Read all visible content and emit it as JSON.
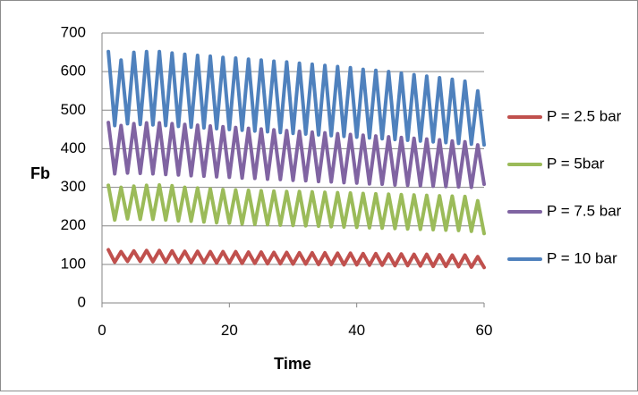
{
  "chart_data": {
    "type": "line",
    "title": "",
    "xlabel": "Time",
    "ylabel": "Fb",
    "xlim": [
      0,
      60
    ],
    "ylim": [
      0,
      700
    ],
    "x_ticks": [
      "0",
      "20",
      "40",
      "60"
    ],
    "y_ticks": [
      "0",
      "100",
      "200",
      "300",
      "400",
      "500",
      "600",
      "700"
    ],
    "grid": "horizontal",
    "legend_position": "right",
    "series": [
      {
        "name": "P = 2.5 bar",
        "color": "#c0504d",
        "x": [
          1,
          2,
          3,
          4,
          5,
          6,
          7,
          8,
          9,
          10,
          11,
          12,
          13,
          14,
          15,
          16,
          17,
          18,
          19,
          20,
          21,
          22,
          23,
          24,
          25,
          26,
          27,
          28,
          29,
          30,
          31,
          32,
          33,
          34,
          35,
          36,
          37,
          38,
          39,
          40,
          41,
          42,
          43,
          44,
          45,
          46,
          47,
          48,
          49,
          50,
          51,
          52,
          53,
          54,
          55,
          56,
          57,
          58,
          59,
          60
        ],
        "values": [
          138,
          106,
          133,
          108,
          135,
          108,
          136,
          107,
          136,
          106,
          135,
          106,
          134,
          105,
          134,
          105,
          133,
          104,
          133,
          104,
          133,
          103,
          132,
          103,
          132,
          102,
          131,
          102,
          131,
          101,
          130,
          101,
          130,
          100,
          130,
          100,
          129,
          99,
          129,
          99,
          128,
          98,
          128,
          98,
          127,
          97,
          127,
          97,
          126,
          96,
          126,
          95,
          125,
          95,
          124,
          94,
          124,
          93,
          120,
          92
        ]
      },
      {
        "name": "P = 5bar",
        "color": "#9bbb59",
        "x": [
          1,
          2,
          3,
          4,
          5,
          6,
          7,
          8,
          9,
          10,
          11,
          12,
          13,
          14,
          15,
          16,
          17,
          18,
          19,
          20,
          21,
          22,
          23,
          24,
          25,
          26,
          27,
          28,
          29,
          30,
          31,
          32,
          33,
          34,
          35,
          36,
          37,
          38,
          39,
          40,
          41,
          42,
          43,
          44,
          45,
          46,
          47,
          48,
          49,
          50,
          51,
          52,
          53,
          54,
          55,
          56,
          57,
          58,
          59,
          60
        ],
        "values": [
          305,
          215,
          300,
          218,
          303,
          217,
          305,
          217,
          306,
          215,
          304,
          213,
          300,
          212,
          298,
          210,
          296,
          208,
          294,
          207,
          293,
          205,
          292,
          204,
          291,
          203,
          290,
          202,
          289,
          201,
          289,
          200,
          288,
          199,
          287,
          198,
          286,
          197,
          285,
          196,
          284,
          195,
          283,
          194,
          282,
          193,
          281,
          192,
          280,
          191,
          279,
          190,
          278,
          189,
          277,
          188,
          276,
          186,
          265,
          180
        ]
      },
      {
        "name": "P = 7.5 bar",
        "color": "#8064a2",
        "x": [
          1,
          2,
          3,
          4,
          5,
          6,
          7,
          8,
          9,
          10,
          11,
          12,
          13,
          14,
          15,
          16,
          17,
          18,
          19,
          20,
          21,
          22,
          23,
          24,
          25,
          26,
          27,
          28,
          29,
          30,
          31,
          32,
          33,
          34,
          35,
          36,
          37,
          38,
          39,
          40,
          41,
          42,
          43,
          44,
          45,
          46,
          47,
          48,
          49,
          50,
          51,
          52,
          53,
          54,
          55,
          56,
          57,
          58,
          59,
          60
        ],
        "values": [
          468,
          335,
          460,
          337,
          465,
          336,
          467,
          335,
          467,
          333,
          465,
          332,
          463,
          330,
          461,
          329,
          459,
          327,
          457,
          326,
          455,
          324,
          453,
          323,
          451,
          321,
          449,
          320,
          447,
          318,
          445,
          317,
          443,
          315,
          441,
          314,
          439,
          312,
          437,
          311,
          435,
          309,
          433,
          308,
          431,
          306,
          429,
          305,
          427,
          304,
          425,
          303,
          423,
          302,
          420,
          301,
          418,
          300,
          410,
          308
        ]
      },
      {
        "name": "P = 10 bar",
        "color": "#4f81bd",
        "x": [
          1,
          2,
          3,
          4,
          5,
          6,
          7,
          8,
          9,
          10,
          11,
          12,
          13,
          14,
          15,
          16,
          17,
          18,
          19,
          20,
          21,
          22,
          23,
          24,
          25,
          26,
          27,
          28,
          29,
          30,
          31,
          32,
          33,
          34,
          35,
          36,
          37,
          38,
          39,
          40,
          41,
          42,
          43,
          44,
          45,
          46,
          47,
          48,
          49,
          50,
          51,
          52,
          53,
          54,
          55,
          56,
          57,
          58,
          59,
          60
        ],
        "values": [
          652,
          460,
          630,
          465,
          650,
          463,
          652,
          462,
          652,
          460,
          648,
          458,
          645,
          456,
          642,
          454,
          640,
          452,
          637,
          450,
          635,
          448,
          632,
          446,
          630,
          444,
          627,
          442,
          625,
          440,
          622,
          438,
          619,
          436,
          616,
          434,
          613,
          432,
          610,
          430,
          606,
          428,
          603,
          426,
          600,
          424,
          596,
          422,
          592,
          420,
          588,
          418,
          584,
          416,
          580,
          414,
          575,
          412,
          550,
          410
        ]
      }
    ]
  }
}
